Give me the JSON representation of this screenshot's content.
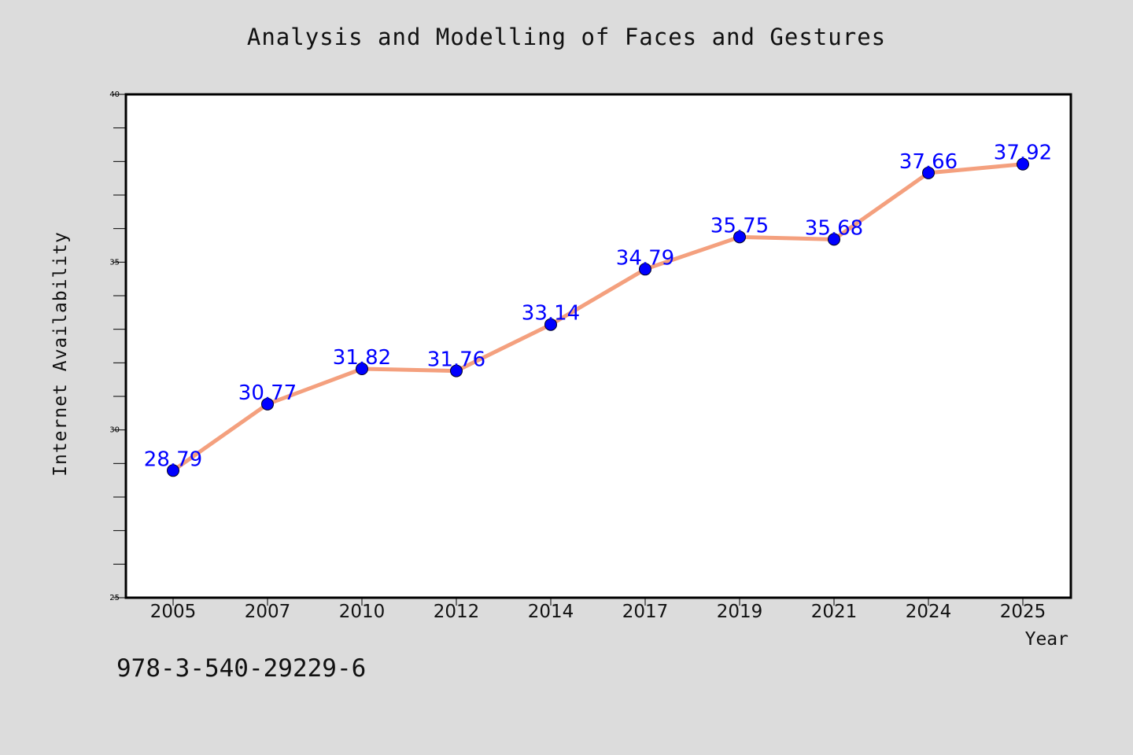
{
  "chart_data": {
    "type": "line",
    "title": "Analysis and Modelling of Faces and Gestures",
    "xlabel": "Year",
    "ylabel": "Internet Availability",
    "categories": [
      "2005",
      "2007",
      "2010",
      "2012",
      "2014",
      "2017",
      "2019",
      "2021",
      "2024",
      "2025"
    ],
    "series": [
      {
        "values": [
          28.79,
          30.77,
          31.82,
          31.76,
          33.14,
          34.79,
          35.75,
          35.68,
          37.66,
          37.92
        ],
        "labels": [
          "28.79",
          "30.77",
          "31.82",
          "31.76",
          "33.14",
          "34.79",
          "35.75",
          "35.68",
          "37.66",
          "37.92"
        ]
      }
    ],
    "ylim": [
      25,
      40
    ],
    "yticks": [
      "25",
      "30",
      "35",
      "40"
    ],
    "grid": false,
    "colors": {
      "line": "#f4a07e",
      "marker": "#0000ff",
      "data_label": "#0000ff",
      "background": "#dcdcdc",
      "plot_area": "#ffffff"
    }
  },
  "footer": {
    "isbn": "978-3-540-29229-6"
  }
}
